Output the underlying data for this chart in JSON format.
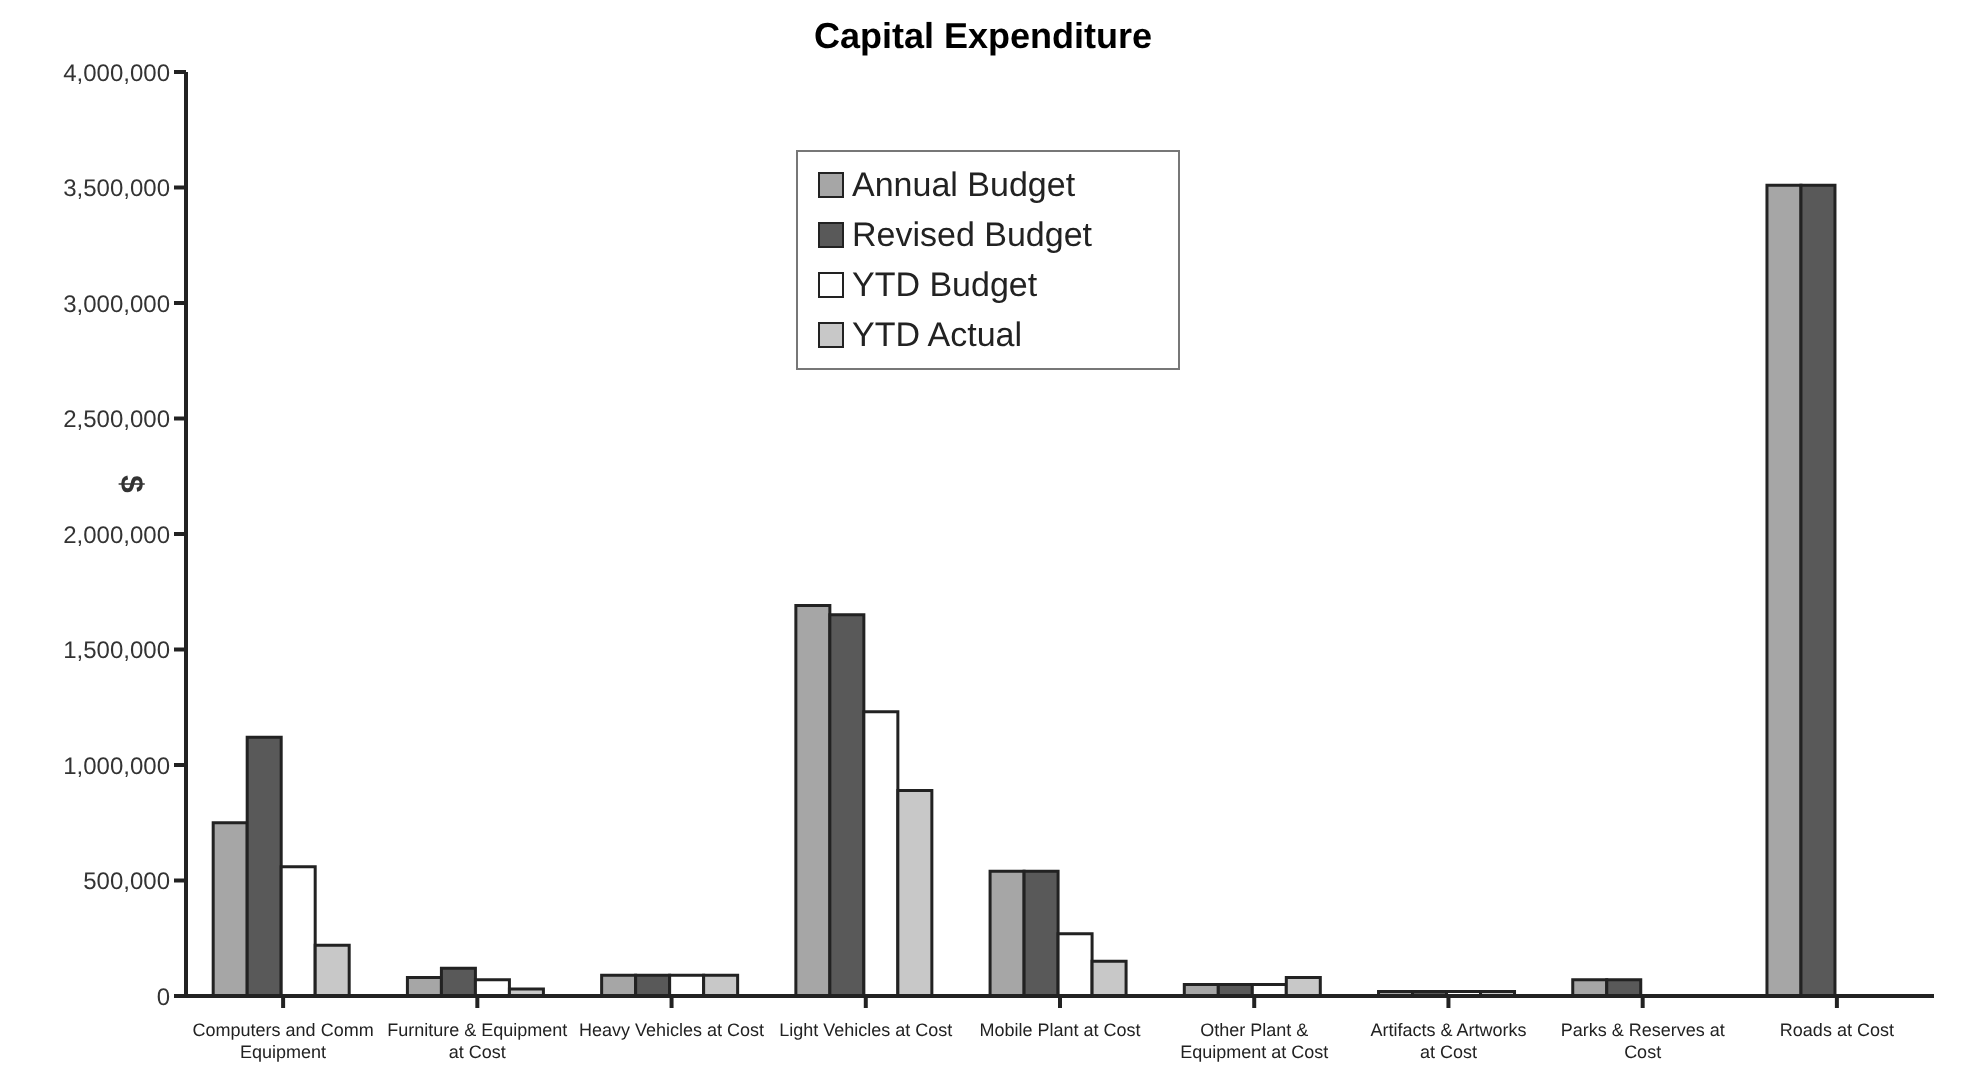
{
  "chart_data": {
    "type": "bar",
    "title": "Capital Expenditure",
    "ylabel": "$",
    "categories": [
      "Computers and Comm Equipment",
      "Furniture & Equipment at Cost",
      "Heavy Vehicles at Cost",
      "Light Vehicles at Cost",
      "Mobile Plant at Cost",
      "Other Plant & Equipment at Cost",
      "Artifacts & Artworks at Cost",
      "Parks & Reserves at Cost",
      "Roads at Cost"
    ],
    "series": [
      {
        "name": "Annual Budget",
        "color": "#a6a6a6",
        "values": [
          750000,
          80000,
          90000,
          1690000,
          540000,
          50000,
          20000,
          70000,
          3510000
        ]
      },
      {
        "name": "Revised Budget",
        "color": "#595959",
        "values": [
          1120000,
          120000,
          90000,
          1650000,
          540000,
          50000,
          20000,
          70000,
          3510000
        ]
      },
      {
        "name": "YTD Budget",
        "color": "#ffffff",
        "values": [
          560000,
          70000,
          90000,
          1230000,
          270000,
          50000,
          20000,
          0,
          0
        ]
      },
      {
        "name": "YTD Actual",
        "color": "#c8c8c8",
        "values": [
          220000,
          30000,
          90000,
          890000,
          150000,
          80000,
          20000,
          0,
          0
        ]
      }
    ],
    "ylim": [
      0,
      4000000
    ],
    "yticks": [
      0,
      {
        "value": 500000,
        "label": "500,000"
      },
      {
        "value": 1000000,
        "label": "1,000,000"
      },
      {
        "value": 1500000,
        "label": "1,500,000"
      },
      {
        "value": 2000000,
        "label": "2,000,000"
      },
      {
        "value": 2500000,
        "label": "2,500,000"
      },
      {
        "value": 3000000,
        "label": "3,000,000"
      },
      {
        "value": 3500000,
        "label": "3,500,000"
      },
      {
        "value": 4000000,
        "label": "4,000,000"
      }
    ],
    "legend": "top"
  }
}
